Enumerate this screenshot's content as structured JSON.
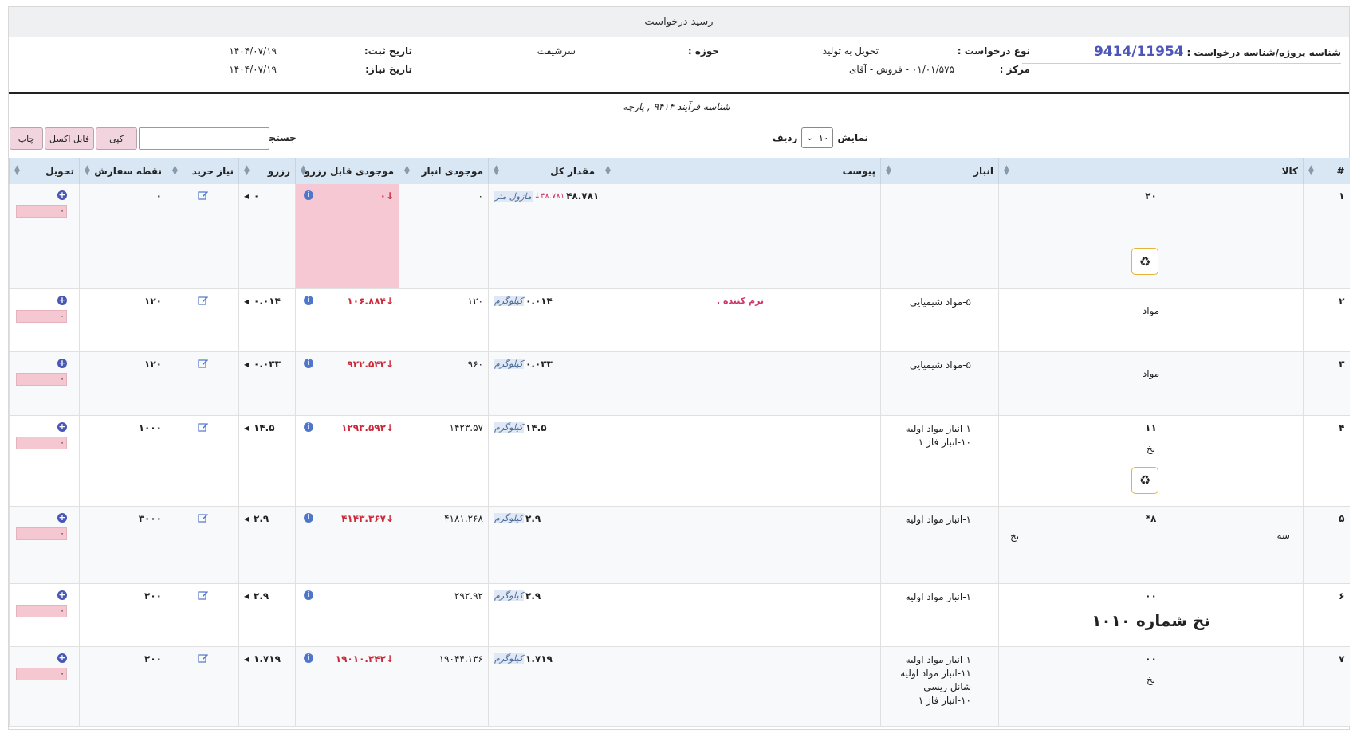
{
  "title": "رسید درخواست",
  "info": {
    "project_label": "شناسه پروژه/شناسه درخواست :",
    "project_value": "9414/11954",
    "request_type_label": "نوع درخواست :",
    "request_type_value": "تحویل به تولید",
    "scope_label": "حوزه :",
    "scope_value": "سرشیفت",
    "reg_date_label": "تاریخ ثبت:",
    "reg_date_value": "۱۴۰۴/۰۷/۱۹",
    "center_label": "مرکز :",
    "center_value": "۰۱/۰۱/۵۷۵ - فروش - آقای",
    "need_date_label": "تاریخ نیاز:",
    "need_date_value": "۱۴۰۴/۰۷/۱۹"
  },
  "process_line": "شناسه فرآیند ۹۴۱۴ , پارچه",
  "controls": {
    "show_label": "نمایش",
    "page_size": "۱۰",
    "rows_label": "ردیف",
    "search_label": "جستجو:",
    "copy_label": "کپی",
    "excel_label": "فایل اکسل",
    "print_label": "چاپ"
  },
  "columns": [
    "#",
    "کالا",
    "انبار",
    "پیوست",
    "مقدار کل",
    "موجودی انبار",
    "موجودی قابل رزرو",
    "رزرو",
    "نیاز خرید",
    "نقطه سفارش",
    "تحویل"
  ],
  "rows": [
    {
      "idx": "۱",
      "code": "۲۰",
      "name": "",
      "big_name": "",
      "warehouse": "",
      "attachment": "",
      "qty": "۴۸.۷۸۱",
      "qty_red": "۴۸.۷۸۱↓",
      "unit": "مازول متر",
      "stock": "۰",
      "available": "↓۰",
      "reserve": "۰",
      "purchase": "",
      "order_point": "۰",
      "deliver": "۰"
    },
    {
      "idx": "۲",
      "code": "",
      "name": "مواد",
      "big_name": "",
      "warehouse": "۵-مواد شیمیایی",
      "attachment": "نرم کننده .",
      "qty": "۰.۰۱۴",
      "qty_red": "",
      "unit": "کیلوگرم",
      "stock": "۱۲۰",
      "available": "↓۱۰۶.۸۸۴",
      "reserve": "۰.۰۱۴",
      "purchase": "",
      "order_point": "۱۲۰",
      "deliver": "۰"
    },
    {
      "idx": "۳",
      "code": "",
      "name": "مواد",
      "big_name": "",
      "warehouse": "۵-مواد شیمیایی",
      "attachment": "",
      "qty": "۰.۰۳۳",
      "qty_red": "",
      "unit": "کیلوگرم",
      "stock": "۹۶۰",
      "available": "↓۹۲۲.۵۴۲",
      "reserve": "۰.۰۳۳",
      "purchase": "",
      "order_point": "۱۲۰",
      "deliver": "۰"
    },
    {
      "idx": "۴",
      "code": "۱۱",
      "name": "نخ",
      "big_name": "",
      "warehouse": "۱-انبار مواد اولیه\n۱۰-انبار فاز ۱",
      "attachment": "",
      "qty": "۱۴.۵",
      "qty_red": "",
      "unit": "کیلوگرم",
      "stock": "۱۴۲۳.۵۷",
      "available": "↓۱۲۹۳.۵۹۲",
      "reserve": "۱۴.۵",
      "purchase": "",
      "order_point": "۱۰۰۰",
      "deliver": "۰"
    },
    {
      "idx": "۵",
      "code": "۸*",
      "name": "نخ",
      "name2": "سه",
      "big_name": "",
      "warehouse": "۱-انبار مواد اولیه",
      "attachment": "",
      "qty": "۲.۹",
      "qty_red": "",
      "unit": "کیلوگرم",
      "stock": "۴۱۸۱.۲۶۸",
      "available": "↓۴۱۴۳.۳۶۷",
      "reserve": "۲.۹",
      "purchase": "",
      "order_point": "۳۰۰۰",
      "deliver": "۰"
    },
    {
      "idx": "۶",
      "code": "۰۰",
      "name": "",
      "big_name": "نخ شماره ۱۰۱۰",
      "warehouse": "۱-انبار مواد اولیه",
      "attachment": "",
      "qty": "۲.۹",
      "qty_red": "",
      "unit": "کیلوگرم",
      "stock": "۲۹۲.۹۲",
      "available": "",
      "reserve": "۲.۹",
      "purchase": "",
      "order_point": "۲۰۰",
      "deliver": "۰"
    },
    {
      "idx": "۷",
      "code": "۰۰",
      "name": "نخ",
      "big_name": "",
      "warehouse": "۱-انبار مواد اولیه\n۱۱-انبار مواد اولیه شانل ریسی\n۱۰-انبار فاز ۱",
      "attachment": "",
      "qty": "۱.۷۱۹",
      "qty_red": "",
      "unit": "کیلوگرم",
      "stock": "۱۹۰۴۴.۱۳۶",
      "available": "↓۱۹۰۱۰.۲۴۲",
      "reserve": "۱.۷۱۹",
      "purchase": "",
      "order_point": "۲۰۰",
      "deliver": "۰"
    }
  ]
}
